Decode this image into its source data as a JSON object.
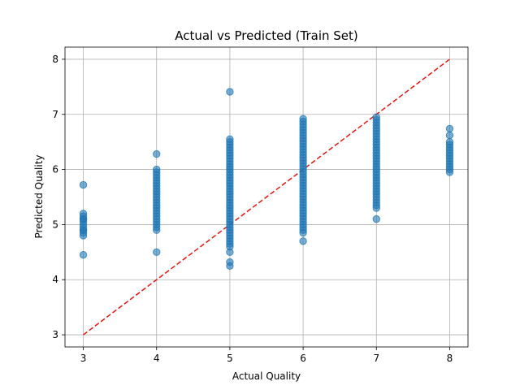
{
  "chart_data": {
    "type": "scatter",
    "title": "Actual vs Predicted (Train Set)",
    "xlabel": "Actual Quality",
    "ylabel": "Predicted Quality",
    "xlim": [
      2.75,
      8.25
    ],
    "ylim": [
      2.78,
      8.22
    ],
    "xticks": [
      3,
      4,
      5,
      6,
      7,
      8
    ],
    "yticks": [
      3,
      4,
      5,
      6,
      7,
      8
    ],
    "grid": true,
    "point_color": "#1f77b4",
    "reference_line": {
      "from": [
        3,
        3
      ],
      "to": [
        8,
        8
      ],
      "style": "dashed",
      "color": "#e8140f"
    },
    "clusters": [
      {
        "x": 3,
        "predicted_min": 4.8,
        "predicted_max": 5.2,
        "outliers": [
          4.45,
          5.72,
          4.9,
          5.1
        ]
      },
      {
        "x": 4,
        "predicted_min": 4.9,
        "predicted_max": 6.0,
        "outliers": [
          4.5,
          6.28
        ]
      },
      {
        "x": 5,
        "predicted_min": 4.6,
        "predicted_max": 6.55,
        "outliers": [
          4.25,
          4.32,
          4.5,
          7.41
        ]
      },
      {
        "x": 6,
        "predicted_min": 4.85,
        "predicted_max": 6.92,
        "outliers": [
          4.7
        ]
      },
      {
        "x": 7,
        "predicted_min": 5.3,
        "predicted_max": 6.95,
        "outliers": [
          5.1
        ]
      },
      {
        "x": 8,
        "predicted_min": 5.95,
        "predicted_max": 6.5,
        "outliers": [
          6.62,
          6.74
        ]
      }
    ]
  }
}
